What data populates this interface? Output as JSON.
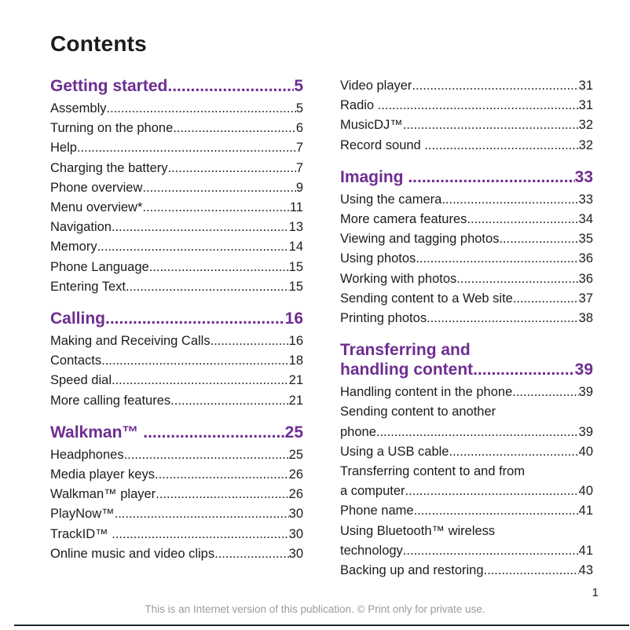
{
  "page": {
    "title": "Contents",
    "page_number": "1",
    "footer": "This is an Internet version of this publication. © Print only for private use.",
    "colors": {
      "accent": "#6e2d91",
      "text": "#1c1c1e",
      "muted": "#9b9b9b",
      "divider": "#21242b"
    }
  },
  "columns": [
    {
      "sections": [
        {
          "heading": {
            "label": "Getting started",
            "page": "5"
          },
          "entries": [
            {
              "label": "Assembly",
              "page": "5"
            },
            {
              "label": "Turning on the phone",
              "page": "6"
            },
            {
              "label": "Help",
              "page": "7"
            },
            {
              "label": "Charging the battery",
              "page": "7"
            },
            {
              "label": "Phone overview",
              "page": "9"
            },
            {
              "label": "Menu overview*",
              "page": "11"
            },
            {
              "label": "Navigation",
              "page": "13"
            },
            {
              "label": "Memory",
              "page": "14"
            },
            {
              "label": "Phone Language",
              "page": "15"
            },
            {
              "label": "Entering Text",
              "page": "15"
            }
          ]
        },
        {
          "heading": {
            "label": "Calling",
            "page": "16"
          },
          "entries": [
            {
              "label": "Making and Receiving Calls",
              "page": "16"
            },
            {
              "label": "Contacts",
              "page": "18"
            },
            {
              "label": "Speed dial",
              "page": "21"
            },
            {
              "label": "More calling features",
              "page": "21"
            }
          ]
        },
        {
          "heading": {
            "label": "Walkman™ ",
            "page": "25"
          },
          "entries": [
            {
              "label": "Headphones",
              "page": "25"
            },
            {
              "label": "Media player keys",
              "page": "26"
            },
            {
              "label": "Walkman™ player",
              "page": "26"
            },
            {
              "label": "PlayNow™",
              "page": "30"
            },
            {
              "label": "TrackID™ ",
              "page": "30"
            },
            {
              "label": "Online music and video clips",
              "page": "30"
            }
          ]
        }
      ]
    },
    {
      "sections": [
        {
          "heading": null,
          "entries": [
            {
              "label": "Video player",
              "page": "31"
            },
            {
              "label": "Radio ",
              "page": "31"
            },
            {
              "label": "MusicDJ™",
              "page": "32"
            },
            {
              "label": "Record sound ",
              "page": "32"
            }
          ]
        },
        {
          "heading": {
            "label": "Imaging ",
            "page": "33"
          },
          "entries": [
            {
              "label": "Using the camera",
              "page": "33"
            },
            {
              "label": "More camera features",
              "page": "34"
            },
            {
              "label": "Viewing and tagging photos",
              "page": "35"
            },
            {
              "label": "Using photos",
              "page": "36"
            },
            {
              "label": "Working with photos",
              "page": "36"
            },
            {
              "label": "Sending content to a Web site",
              "page": "37"
            },
            {
              "label": "Printing photos",
              "page": "38"
            }
          ]
        },
        {
          "heading": {
            "label": "Transferring and",
            "label2": "handling content",
            "page": "39"
          },
          "entries": [
            {
              "label": "Handling content in the phone",
              "page": "39"
            },
            {
              "label": "Sending content to another",
              "label2": "phone",
              "page": "39"
            },
            {
              "label": "Using a USB cable",
              "page": "40"
            },
            {
              "label": "Transferring content to and from",
              "label2": "a computer",
              "page": "40"
            },
            {
              "label": "Phone name",
              "page": "41"
            },
            {
              "label": "Using Bluetooth™ wireless",
              "label2": "technology",
              "page": "41"
            },
            {
              "label": "Backing up and restoring",
              "page": "43"
            }
          ]
        }
      ]
    }
  ]
}
